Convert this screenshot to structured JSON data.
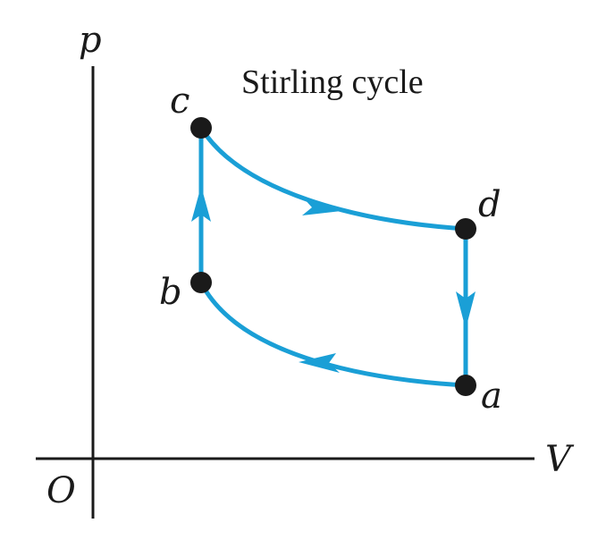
{
  "diagram": {
    "title": "Stirling cycle",
    "axes": {
      "y_label": "p",
      "x_label": "V",
      "origin_label": "O"
    },
    "states": [
      {
        "id": "a",
        "label": "a"
      },
      {
        "id": "b",
        "label": "b"
      },
      {
        "id": "c",
        "label": "c"
      },
      {
        "id": "d",
        "label": "d"
      }
    ],
    "processes": [
      {
        "from": "a",
        "to": "b",
        "kind": "isothermal compression"
      },
      {
        "from": "b",
        "to": "c",
        "kind": "isochoric heating"
      },
      {
        "from": "c",
        "to": "d",
        "kind": "isothermal expansion"
      },
      {
        "from": "d",
        "to": "a",
        "kind": "isochoric cooling"
      }
    ],
    "colors": {
      "curve": "#1a9fd6",
      "ink": "#1a1a1a"
    }
  }
}
